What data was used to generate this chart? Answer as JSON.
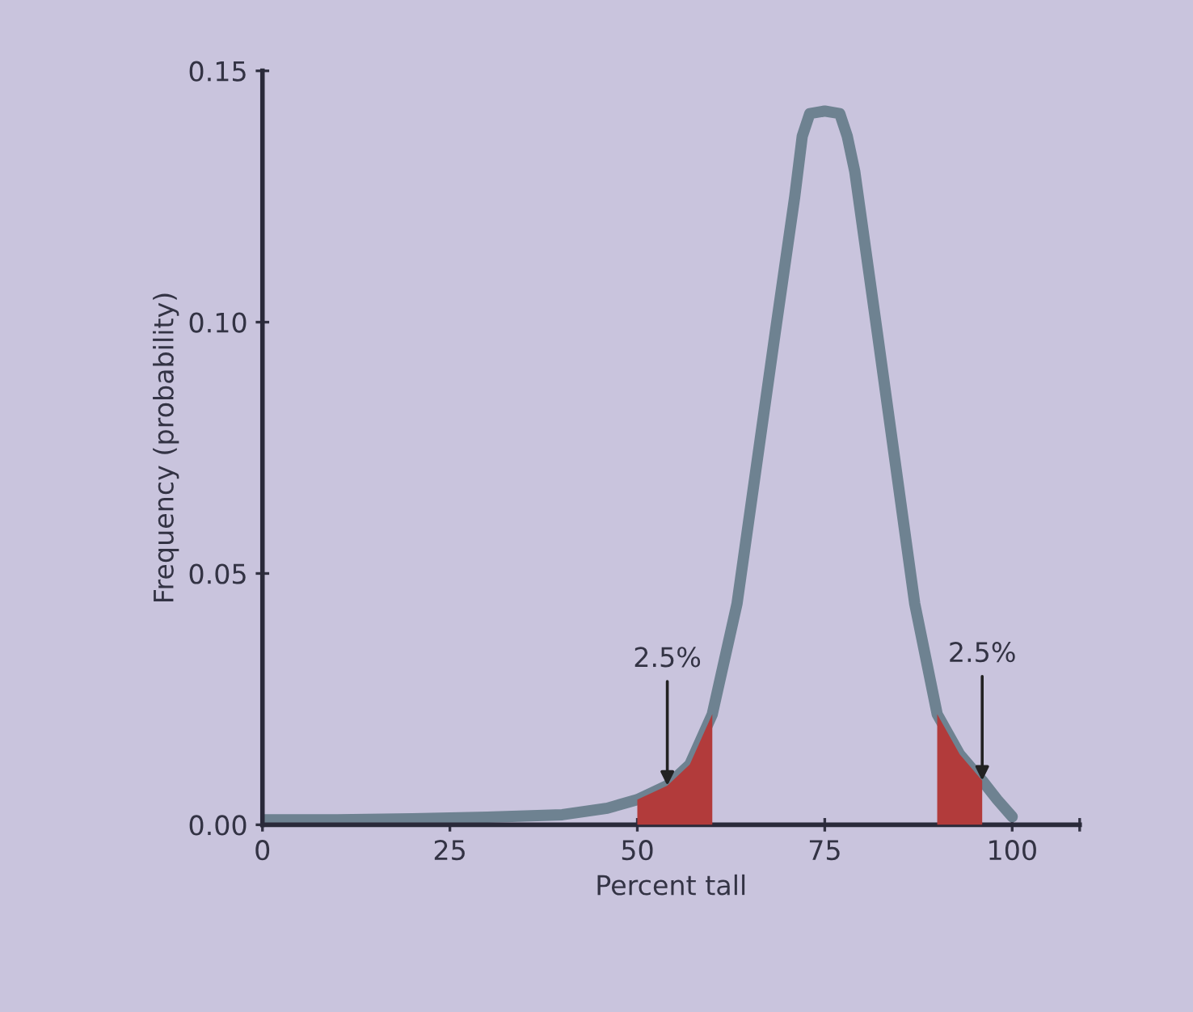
{
  "chart_data": {
    "type": "line",
    "xlabel": "Percent tall",
    "ylabel": "Frequency (probability)",
    "xlim": [
      0,
      109
    ],
    "ylim": [
      0,
      0.15
    ],
    "xticks": [
      0,
      25,
      50,
      75,
      100,
      {
        "value": 109,
        "label": null
      }
    ],
    "yticks": [
      {
        "value": 0,
        "label": "0.00"
      },
      0.05,
      {
        "value": 0.1,
        "label": "0.10"
      },
      0.15
    ],
    "grid": false,
    "legend": false,
    "marker": "none",
    "line_style": "solid",
    "series": [
      {
        "color": "#6e8291",
        "x": [
          0,
          10,
          20,
          30,
          40,
          46,
          50,
          54,
          57,
          60,
          63.3,
          68.4,
          71,
          72,
          73,
          75,
          77,
          78,
          79,
          82,
          87,
          90,
          93,
          96,
          98,
          100
        ],
        "values": [
          0.001,
          0.001,
          0.0012,
          0.0015,
          0.002,
          0.0033,
          0.005,
          0.0078,
          0.012,
          0.022,
          0.044,
          0.098,
          0.125,
          0.137,
          0.1415,
          0.142,
          0.1415,
          0.137,
          0.13,
          0.098,
          0.044,
          0.022,
          0.014,
          0.0088,
          0.005,
          0.0016
        ]
      },
      {
        "type": "area",
        "color": "#b23b3b",
        "x": [
          50,
          54,
          57,
          60
        ],
        "values": [
          0.005,
          0.0078,
          0.012,
          0.022
        ]
      },
      {
        "type": "area",
        "color": "#b23b3b",
        "x": [
          90,
          93,
          96
        ],
        "values": [
          0.022,
          0.014,
          0.0088
        ]
      }
    ],
    "annotations": [
      {
        "text": "2.5%",
        "x": 54,
        "y": 0.0078
      },
      {
        "text": "2.5%",
        "x": 96,
        "y": 0.0088
      }
    ]
  }
}
